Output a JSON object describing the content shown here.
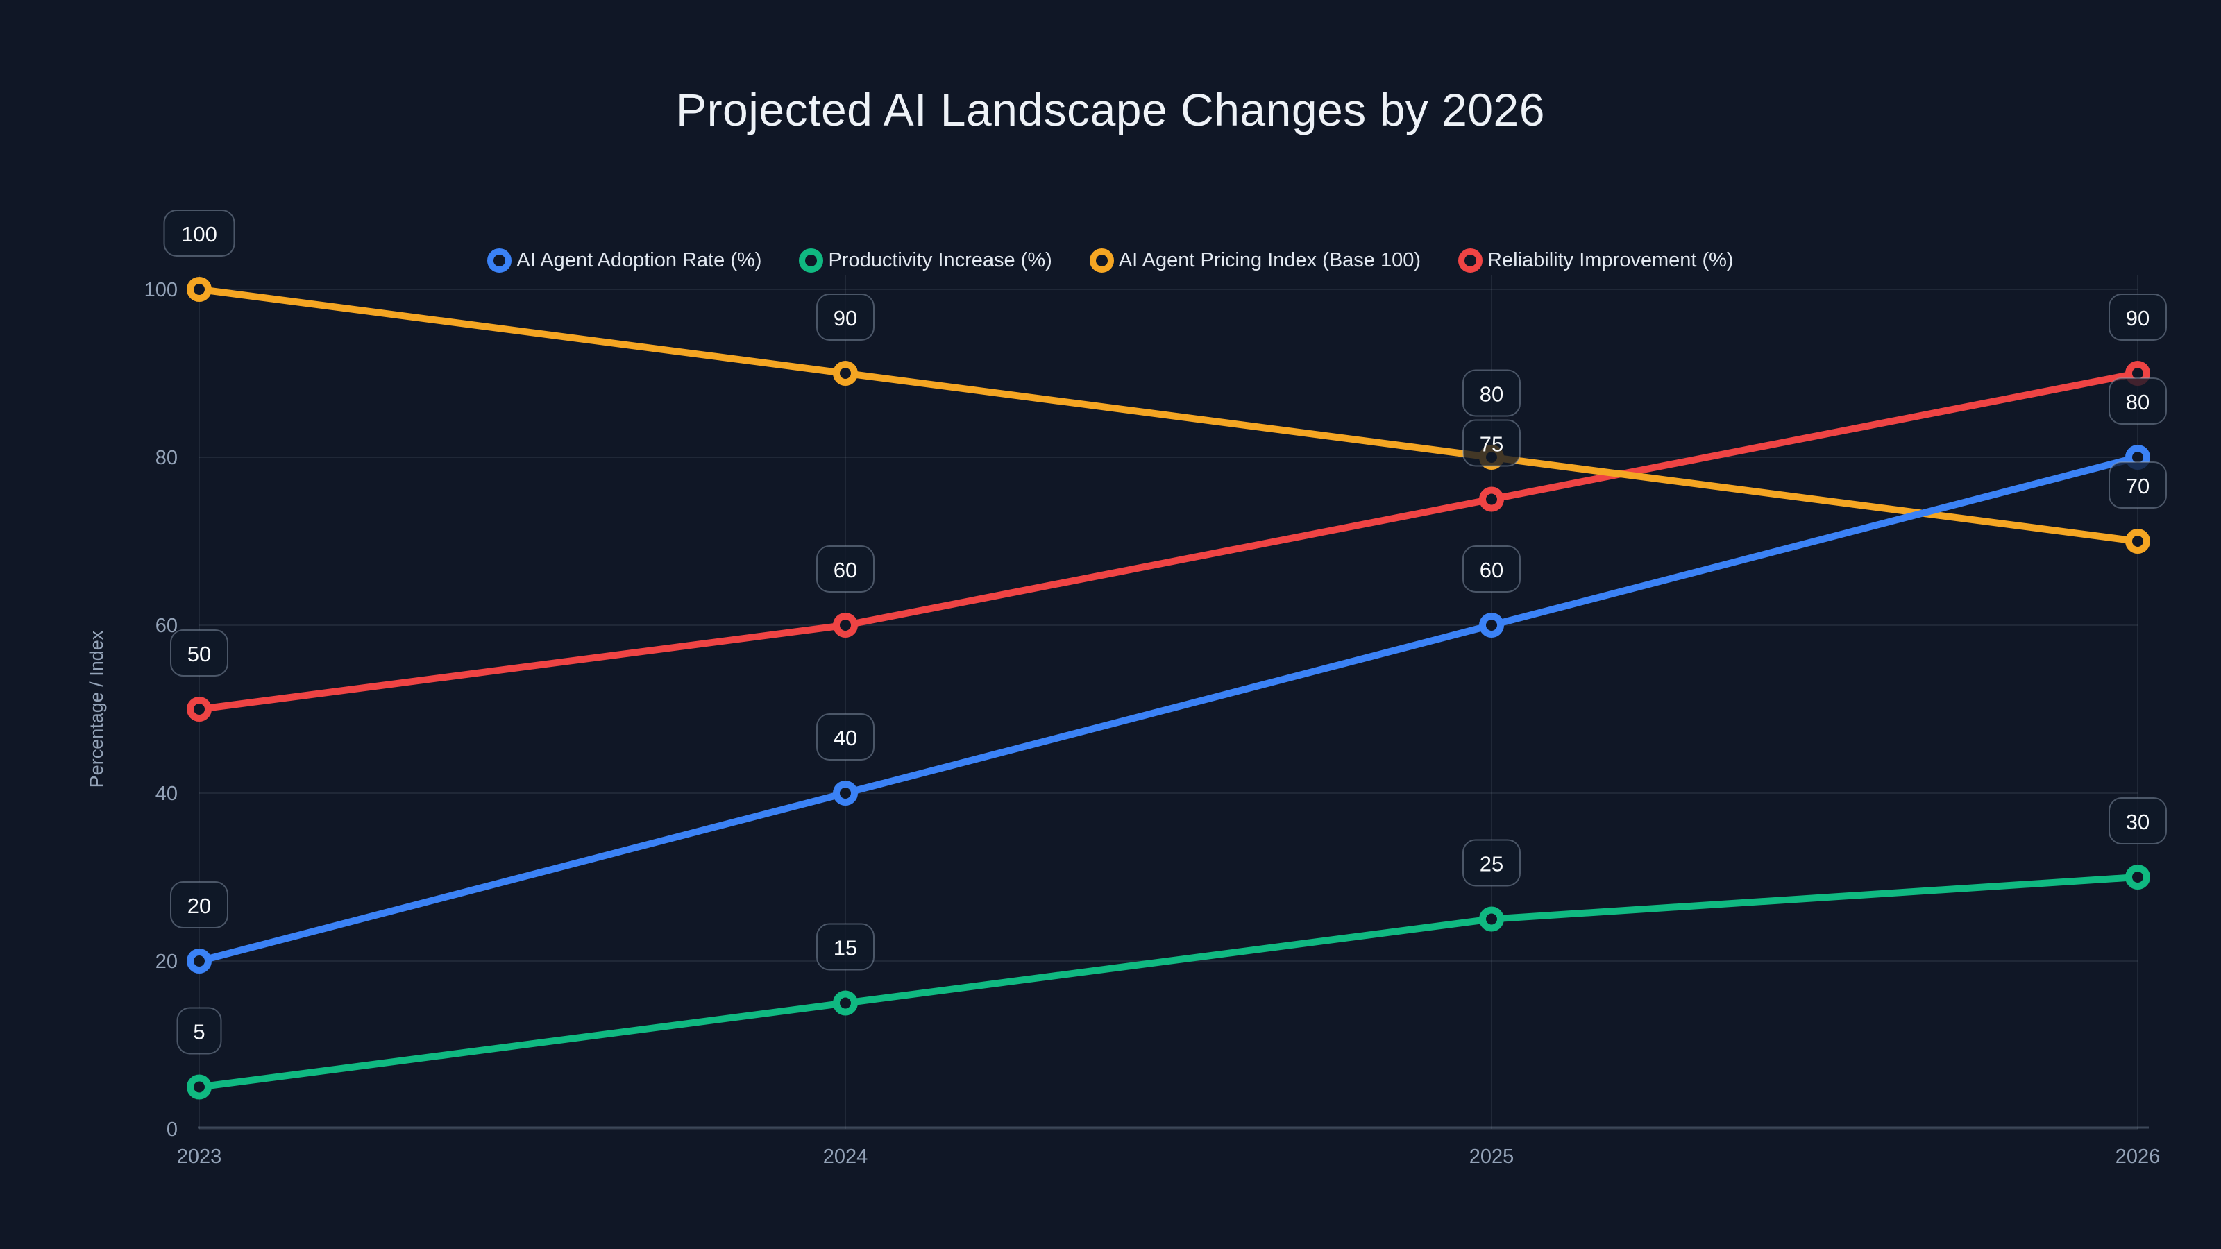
{
  "chart_data": {
    "type": "line",
    "title": "Projected AI Landscape Changes by 2026",
    "ylabel": "Percentage / Index",
    "x": [
      "2023",
      "2024",
      "2025",
      "2026"
    ],
    "ylim": [
      0,
      100
    ],
    "yticks": [
      0,
      20,
      40,
      60,
      80,
      100
    ],
    "grid": true,
    "legend_position": "top",
    "point_labels_shown": true,
    "series": [
      {
        "name": "AI Agent Adoption Rate (%)",
        "color": "#3b82f6",
        "values": [
          20,
          40,
          60,
          80
        ]
      },
      {
        "name": "Productivity Increase (%)",
        "color": "#10b981",
        "values": [
          5,
          15,
          25,
          30
        ]
      },
      {
        "name": "AI Agent Pricing Index (Base 100)",
        "color": "#f5a623",
        "values": [
          100,
          90,
          80,
          70
        ]
      },
      {
        "name": "Reliability Improvement (%)",
        "color": "#ef4444",
        "values": [
          50,
          60,
          75,
          90
        ]
      }
    ]
  },
  "colors": {
    "background": "#101726",
    "title_text": "#eef2f7",
    "tick_text": "#94a3b8",
    "legend_text": "#e2e8f0",
    "label_text": "#f8fafc"
  }
}
